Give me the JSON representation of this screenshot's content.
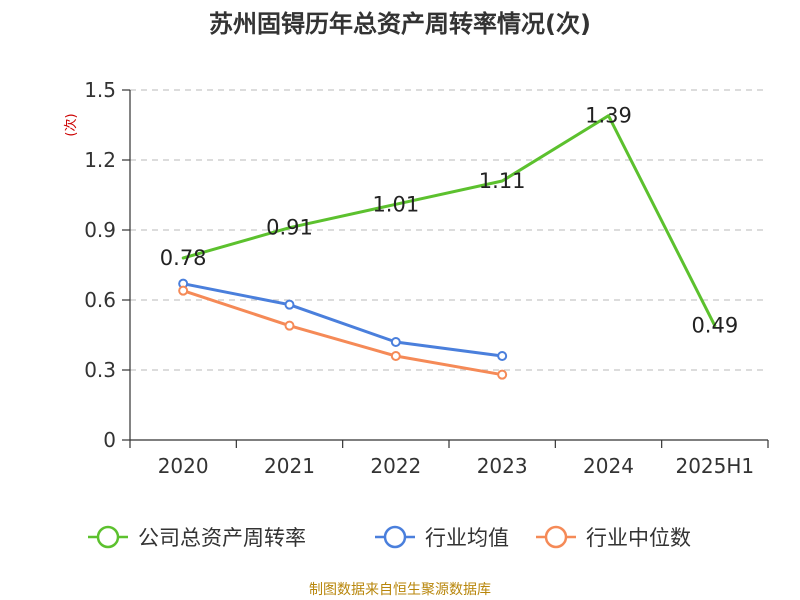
{
  "chart_data": {
    "type": "line",
    "title": "苏州固锝历年总资产周转率情况(次)",
    "ylabel": "(次)",
    "xlabel": "",
    "categories": [
      "2020",
      "2021",
      "2022",
      "2023",
      "2024",
      "2025H1"
    ],
    "y_ticks": [
      "0",
      "0.3",
      "0.6",
      "0.9",
      "1.2",
      "1.5"
    ],
    "ylim": [
      0,
      1.5
    ],
    "grid": true,
    "legend_position": "bottom",
    "series": [
      {
        "name": "公司总资产周转率",
        "color": "#5cc12e",
        "values": [
          0.78,
          0.91,
          1.01,
          1.11,
          1.39,
          0.49
        ],
        "labels": [
          "0.78",
          "0.91",
          "1.01",
          "1.11",
          "1.39",
          "0.49"
        ],
        "show_markers": false
      },
      {
        "name": "行业均值",
        "color": "#4a7fdc",
        "values": [
          0.67,
          0.58,
          0.42,
          0.36,
          null,
          null
        ],
        "show_markers": true
      },
      {
        "name": "行业中位数",
        "color": "#f58a57",
        "values": [
          0.64,
          0.49,
          0.36,
          0.28,
          null,
          null
        ],
        "show_markers": true
      }
    ]
  },
  "source": "制图数据来自恒生聚源数据库"
}
